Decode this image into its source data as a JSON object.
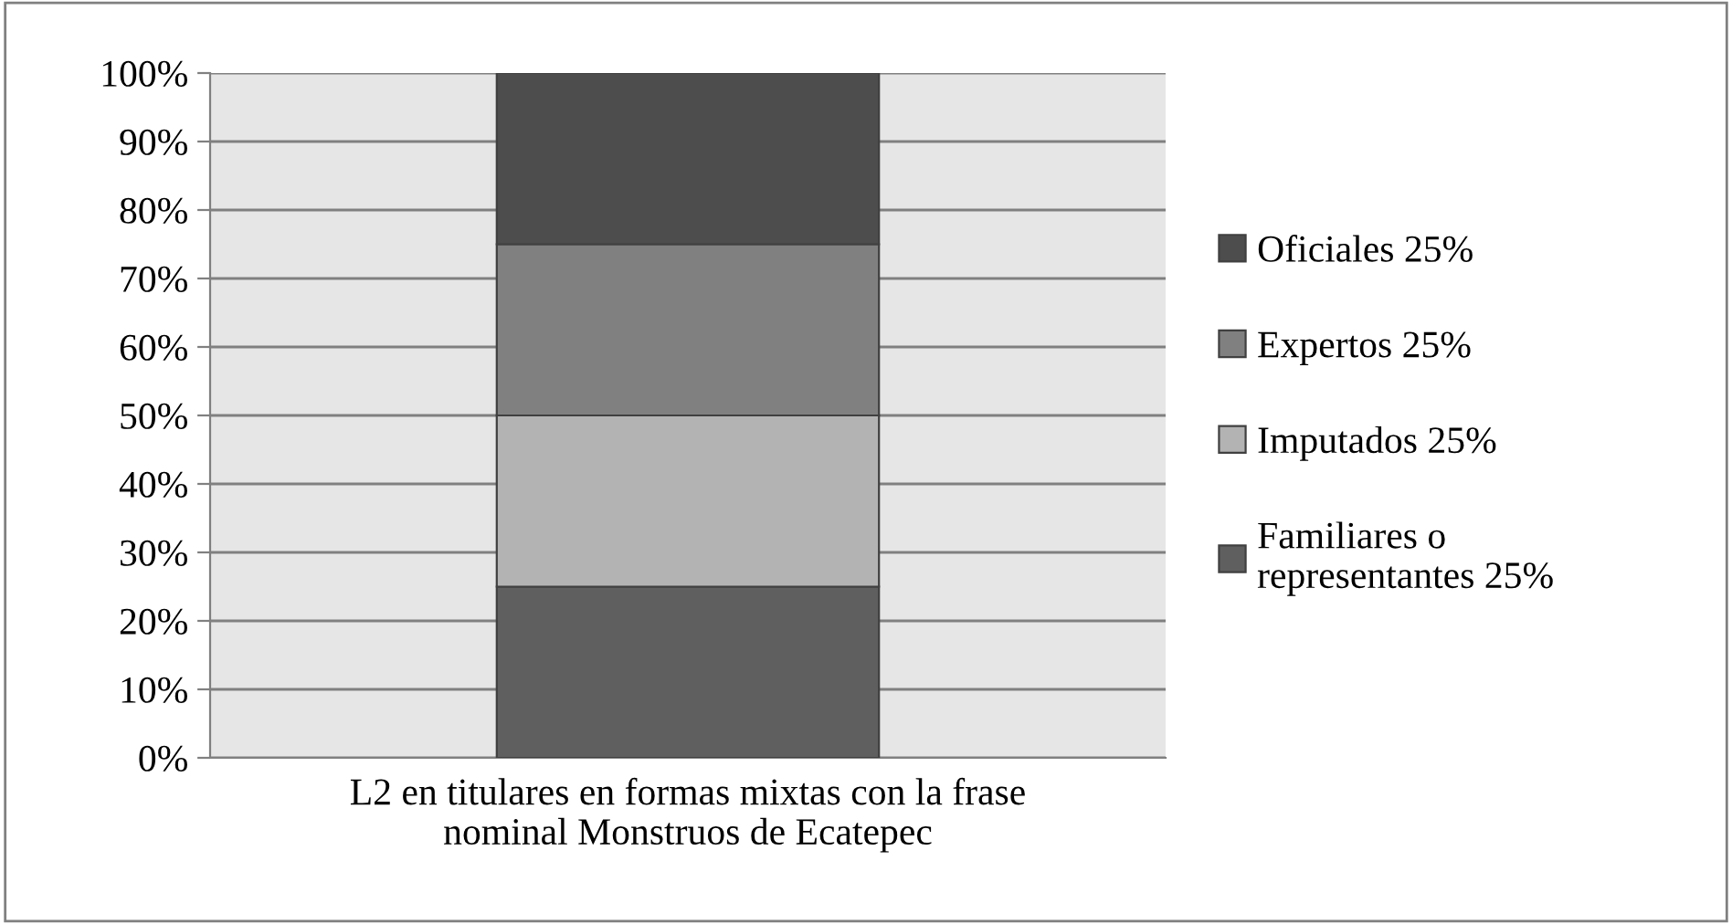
{
  "chart_data": {
    "type": "bar",
    "stacked": true,
    "categories": [
      "L2 en titulares en formas mixtas con la frase\nnominal Monstruos de Ecatepec"
    ],
    "series": [
      {
        "name": "Familiares o\nrepresentantes 25%",
        "color": "#5f5f5f",
        "values": [
          25
        ]
      },
      {
        "name": "Imputados 25%",
        "color": "#b3b3b3",
        "values": [
          25
        ]
      },
      {
        "name": "Expertos 25%",
        "color": "#808080",
        "values": [
          25
        ]
      },
      {
        "name": "Oficiales 25%",
        "color": "#4d4d4d",
        "values": [
          25
        ]
      }
    ],
    "ylim": [
      0,
      100
    ],
    "yticks": [
      {
        "value": 0,
        "label": "0%"
      },
      {
        "value": 10,
        "label": "10%"
      },
      {
        "value": 20,
        "label": "20%"
      },
      {
        "value": 30,
        "label": "30%"
      },
      {
        "value": 40,
        "label": "40%"
      },
      {
        "value": 50,
        "label": "50%"
      },
      {
        "value": 60,
        "label": "60%"
      },
      {
        "value": 70,
        "label": "70%"
      },
      {
        "value": 80,
        "label": "80%"
      },
      {
        "value": 90,
        "label": "90%"
      },
      {
        "value": 100,
        "label": "100%"
      }
    ],
    "grid": "y",
    "legend": "right"
  }
}
